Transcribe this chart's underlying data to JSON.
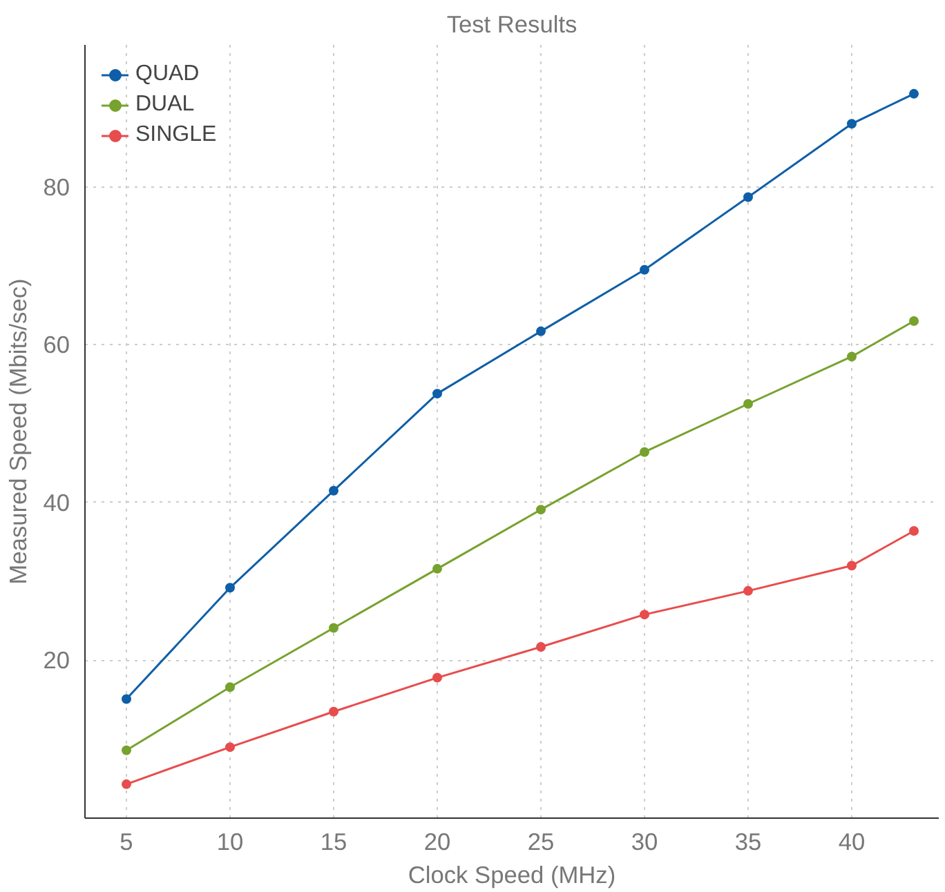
{
  "chart_data": {
    "type": "line",
    "title": "Test Results",
    "xlabel": "Clock Speed (MHz)",
    "ylabel": "Measured Speed (Mbits/sec)",
    "x": [
      5,
      10,
      15,
      20,
      25,
      30,
      35,
      40,
      43
    ],
    "series": [
      {
        "name": "QUAD",
        "color": "#0f5fa8",
        "values": [
          15.1,
          29.2,
          41.5,
          53.8,
          61.7,
          69.5,
          78.7,
          88.0,
          91.8
        ]
      },
      {
        "name": "DUAL",
        "color": "#77a22e",
        "values": [
          8.6,
          16.6,
          24.1,
          31.6,
          39.1,
          46.4,
          52.5,
          58.5,
          63.0
        ]
      },
      {
        "name": "SINGLE",
        "color": "#e84c4c",
        "values": [
          4.3,
          9.0,
          13.5,
          17.8,
          21.7,
          25.8,
          28.8,
          32.0,
          36.4
        ]
      }
    ],
    "xlim": [
      3,
      44.2
    ],
    "ylim": [
      0,
      98
    ],
    "xticks": [
      5,
      10,
      15,
      20,
      25,
      30,
      35,
      40
    ],
    "yticks": [
      20,
      40,
      60,
      80
    ],
    "grid": true,
    "legend": "top left",
    "marker": "circle",
    "line_style": "solid"
  }
}
